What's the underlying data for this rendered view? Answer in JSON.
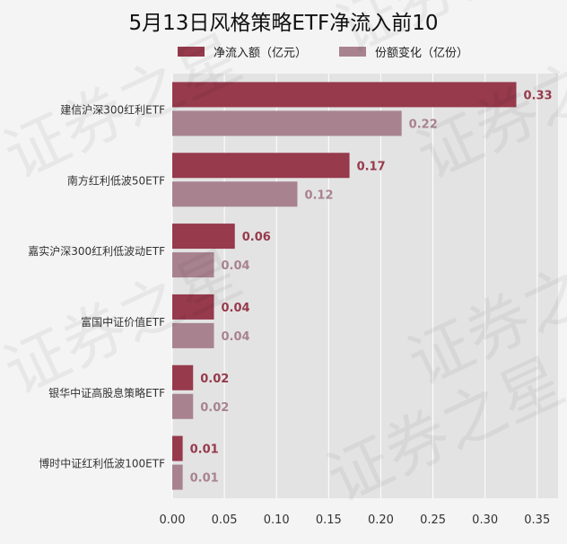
{
  "chart_data": {
    "type": "bar",
    "orientation": "horizontal",
    "title": "5月13日风格策略ETF净流入前10",
    "categories": [
      "建信沪深300红利ETF",
      "南方红利低波50ETF",
      "嘉实沪深300红利低波动ETF",
      "富国中证价值ETF",
      "银华中证高股息策略ETF",
      "博时中证红利低波100ETF"
    ],
    "series": [
      {
        "name": "净流入额（亿元）",
        "values": [
          0.33,
          0.17,
          0.06,
          0.04,
          0.02,
          0.01
        ],
        "labels": [
          "0.33",
          "0.17",
          "0.06",
          "0.04",
          "0.02",
          "0.01"
        ],
        "color": "#963a4c"
      },
      {
        "name": "份额变化（亿份）",
        "values": [
          0.22,
          0.12,
          0.04,
          0.04,
          0.02,
          0.01
        ],
        "labels": [
          "0.22",
          "0.12",
          "0.04",
          "0.04",
          "0.02",
          "0.01"
        ],
        "color": "#a8838f"
      }
    ],
    "xlim": [
      0,
      0.37
    ],
    "xticks": [
      "0.00",
      "0.05",
      "0.10",
      "0.15",
      "0.20",
      "0.25",
      "0.30",
      "0.35"
    ],
    "xtick_values": [
      0,
      0.05,
      0.1,
      0.15,
      0.2,
      0.25,
      0.3,
      0.35
    ],
    "grid": true,
    "legend_position": "top"
  },
  "watermark": "证券之星",
  "colors": {
    "plot_background": "#e3e3e3",
    "page_background": "#f4f4f4",
    "grid": "#ffffff"
  }
}
